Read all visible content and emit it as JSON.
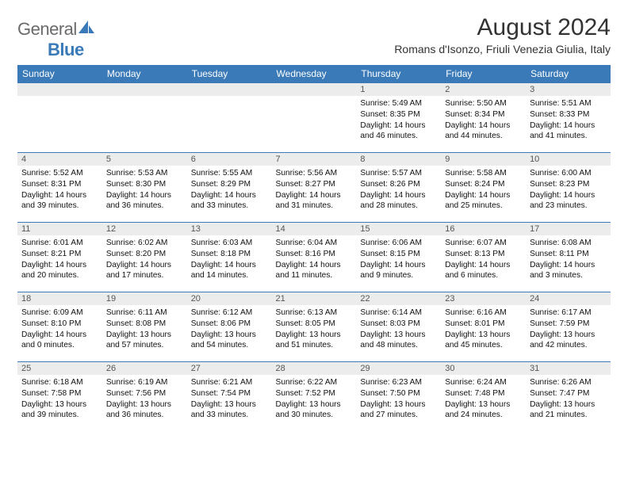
{
  "logo": {
    "text1": "General",
    "text2": "Blue"
  },
  "title": "August 2024",
  "location": "Romans d'Isonzo, Friuli Venezia Giulia, Italy",
  "colors": {
    "header_bg": "#3a7ab8",
    "daynum_bg": "#ececec",
    "border": "#3a7ab8"
  },
  "weekdays": [
    "Sunday",
    "Monday",
    "Tuesday",
    "Wednesday",
    "Thursday",
    "Friday",
    "Saturday"
  ],
  "weeks": [
    [
      {
        "blank": true
      },
      {
        "blank": true
      },
      {
        "blank": true
      },
      {
        "blank": true
      },
      {
        "day": "1",
        "sunrise": "Sunrise: 5:49 AM",
        "sunset": "Sunset: 8:35 PM",
        "daylight": "Daylight: 14 hours and 46 minutes."
      },
      {
        "day": "2",
        "sunrise": "Sunrise: 5:50 AM",
        "sunset": "Sunset: 8:34 PM",
        "daylight": "Daylight: 14 hours and 44 minutes."
      },
      {
        "day": "3",
        "sunrise": "Sunrise: 5:51 AM",
        "sunset": "Sunset: 8:33 PM",
        "daylight": "Daylight: 14 hours and 41 minutes."
      }
    ],
    [
      {
        "day": "4",
        "sunrise": "Sunrise: 5:52 AM",
        "sunset": "Sunset: 8:31 PM",
        "daylight": "Daylight: 14 hours and 39 minutes."
      },
      {
        "day": "5",
        "sunrise": "Sunrise: 5:53 AM",
        "sunset": "Sunset: 8:30 PM",
        "daylight": "Daylight: 14 hours and 36 minutes."
      },
      {
        "day": "6",
        "sunrise": "Sunrise: 5:55 AM",
        "sunset": "Sunset: 8:29 PM",
        "daylight": "Daylight: 14 hours and 33 minutes."
      },
      {
        "day": "7",
        "sunrise": "Sunrise: 5:56 AM",
        "sunset": "Sunset: 8:27 PM",
        "daylight": "Daylight: 14 hours and 31 minutes."
      },
      {
        "day": "8",
        "sunrise": "Sunrise: 5:57 AM",
        "sunset": "Sunset: 8:26 PM",
        "daylight": "Daylight: 14 hours and 28 minutes."
      },
      {
        "day": "9",
        "sunrise": "Sunrise: 5:58 AM",
        "sunset": "Sunset: 8:24 PM",
        "daylight": "Daylight: 14 hours and 25 minutes."
      },
      {
        "day": "10",
        "sunrise": "Sunrise: 6:00 AM",
        "sunset": "Sunset: 8:23 PM",
        "daylight": "Daylight: 14 hours and 23 minutes."
      }
    ],
    [
      {
        "day": "11",
        "sunrise": "Sunrise: 6:01 AM",
        "sunset": "Sunset: 8:21 PM",
        "daylight": "Daylight: 14 hours and 20 minutes."
      },
      {
        "day": "12",
        "sunrise": "Sunrise: 6:02 AM",
        "sunset": "Sunset: 8:20 PM",
        "daylight": "Daylight: 14 hours and 17 minutes."
      },
      {
        "day": "13",
        "sunrise": "Sunrise: 6:03 AM",
        "sunset": "Sunset: 8:18 PM",
        "daylight": "Daylight: 14 hours and 14 minutes."
      },
      {
        "day": "14",
        "sunrise": "Sunrise: 6:04 AM",
        "sunset": "Sunset: 8:16 PM",
        "daylight": "Daylight: 14 hours and 11 minutes."
      },
      {
        "day": "15",
        "sunrise": "Sunrise: 6:06 AM",
        "sunset": "Sunset: 8:15 PM",
        "daylight": "Daylight: 14 hours and 9 minutes."
      },
      {
        "day": "16",
        "sunrise": "Sunrise: 6:07 AM",
        "sunset": "Sunset: 8:13 PM",
        "daylight": "Daylight: 14 hours and 6 minutes."
      },
      {
        "day": "17",
        "sunrise": "Sunrise: 6:08 AM",
        "sunset": "Sunset: 8:11 PM",
        "daylight": "Daylight: 14 hours and 3 minutes."
      }
    ],
    [
      {
        "day": "18",
        "sunrise": "Sunrise: 6:09 AM",
        "sunset": "Sunset: 8:10 PM",
        "daylight": "Daylight: 14 hours and 0 minutes."
      },
      {
        "day": "19",
        "sunrise": "Sunrise: 6:11 AM",
        "sunset": "Sunset: 8:08 PM",
        "daylight": "Daylight: 13 hours and 57 minutes."
      },
      {
        "day": "20",
        "sunrise": "Sunrise: 6:12 AM",
        "sunset": "Sunset: 8:06 PM",
        "daylight": "Daylight: 13 hours and 54 minutes."
      },
      {
        "day": "21",
        "sunrise": "Sunrise: 6:13 AM",
        "sunset": "Sunset: 8:05 PM",
        "daylight": "Daylight: 13 hours and 51 minutes."
      },
      {
        "day": "22",
        "sunrise": "Sunrise: 6:14 AM",
        "sunset": "Sunset: 8:03 PM",
        "daylight": "Daylight: 13 hours and 48 minutes."
      },
      {
        "day": "23",
        "sunrise": "Sunrise: 6:16 AM",
        "sunset": "Sunset: 8:01 PM",
        "daylight": "Daylight: 13 hours and 45 minutes."
      },
      {
        "day": "24",
        "sunrise": "Sunrise: 6:17 AM",
        "sunset": "Sunset: 7:59 PM",
        "daylight": "Daylight: 13 hours and 42 minutes."
      }
    ],
    [
      {
        "day": "25",
        "sunrise": "Sunrise: 6:18 AM",
        "sunset": "Sunset: 7:58 PM",
        "daylight": "Daylight: 13 hours and 39 minutes."
      },
      {
        "day": "26",
        "sunrise": "Sunrise: 6:19 AM",
        "sunset": "Sunset: 7:56 PM",
        "daylight": "Daylight: 13 hours and 36 minutes."
      },
      {
        "day": "27",
        "sunrise": "Sunrise: 6:21 AM",
        "sunset": "Sunset: 7:54 PM",
        "daylight": "Daylight: 13 hours and 33 minutes."
      },
      {
        "day": "28",
        "sunrise": "Sunrise: 6:22 AM",
        "sunset": "Sunset: 7:52 PM",
        "daylight": "Daylight: 13 hours and 30 minutes."
      },
      {
        "day": "29",
        "sunrise": "Sunrise: 6:23 AM",
        "sunset": "Sunset: 7:50 PM",
        "daylight": "Daylight: 13 hours and 27 minutes."
      },
      {
        "day": "30",
        "sunrise": "Sunrise: 6:24 AM",
        "sunset": "Sunset: 7:48 PM",
        "daylight": "Daylight: 13 hours and 24 minutes."
      },
      {
        "day": "31",
        "sunrise": "Sunrise: 6:26 AM",
        "sunset": "Sunset: 7:47 PM",
        "daylight": "Daylight: 13 hours and 21 minutes."
      }
    ]
  ]
}
